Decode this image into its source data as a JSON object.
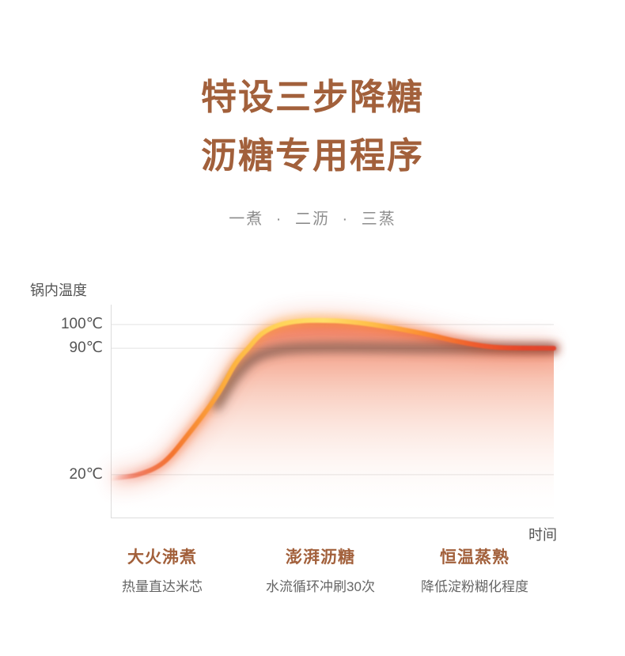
{
  "header": {
    "title_line1": "特设三步降糖",
    "title_line2": "沥糖专用程序",
    "subtitle": "一煮 · 二沥 · 三蒸"
  },
  "colors": {
    "brand_brown": "#a2603b",
    "body_gray": "#666666",
    "axis_label_gray": "#555555",
    "curve_yellow": "#ffdf6a",
    "curve_orange": "#fb8c32",
    "curve_red": "#e8452c"
  },
  "chart_data": {
    "type": "line",
    "title": "",
    "ylabel": "锅内温度",
    "xlabel": "时间",
    "grid": true,
    "legend": false,
    "ylim": [
      0,
      110
    ],
    "yticks": [
      {
        "label": "100℃",
        "value": 100,
        "pos_pct": 9.3
      },
      {
        "label": "90℃",
        "value": 90,
        "pos_pct": 20.4
      },
      {
        "label": "20℃",
        "value": 20,
        "pos_pct": 79.6
      }
    ],
    "series": [
      {
        "name": "pot-temperature-curve",
        "style": "bright-gradient",
        "points": [
          [
            0,
            18
          ],
          [
            6,
            20
          ],
          [
            12,
            27
          ],
          [
            18,
            44
          ],
          [
            24,
            64
          ],
          [
            28,
            81
          ],
          [
            31,
            90
          ],
          [
            34,
            96
          ],
          [
            38,
            99.8
          ],
          [
            43,
            101.5
          ],
          [
            50,
            101.6
          ],
          [
            57,
            100.5
          ],
          [
            64,
            98.5
          ],
          [
            71,
            96
          ],
          [
            78,
            93
          ],
          [
            84,
            91
          ],
          [
            89,
            90.2
          ],
          [
            100,
            90
          ]
        ]
      },
      {
        "name": "steady-90-shadow-curve",
        "style": "dark-blur",
        "points": [
          [
            24,
            58
          ],
          [
            28,
            74
          ],
          [
            32,
            84
          ],
          [
            36,
            88
          ],
          [
            41,
            89.8
          ],
          [
            48,
            90.3
          ],
          [
            56,
            90.3
          ],
          [
            70,
            90
          ],
          [
            85,
            89.9
          ],
          [
            100,
            89.8
          ]
        ]
      }
    ],
    "stages": [
      {
        "title": "大火沸煮",
        "desc": "热量直达米芯"
      },
      {
        "title": "澎湃沥糖",
        "desc": "水流循环冲刷30次"
      },
      {
        "title": "恒温蒸熟",
        "desc": "降低淀粉糊化程度"
      }
    ]
  }
}
